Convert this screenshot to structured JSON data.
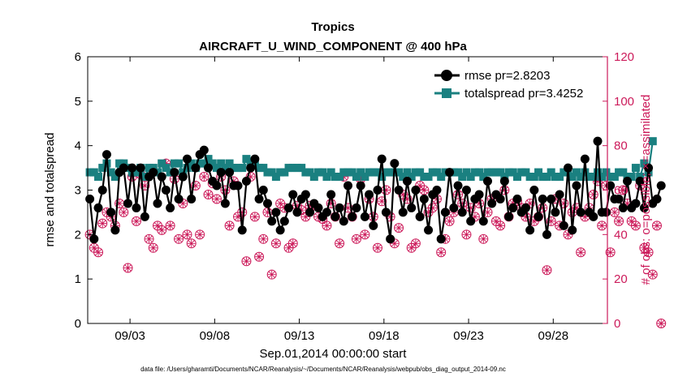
{
  "chart_data": {
    "type": "line",
    "title": "Tropics",
    "subtitle": "AIRCRAFT_U_WIND_COMPONENT @ 400 hPa",
    "xlabel": "Sep.01,2014 00:00:00 start",
    "ylabel": "rmse and totalspread",
    "ylabel_right": "# of obs: o=possible; ×=assimilated",
    "footnote": "data file: /Users/gharamti/Documents/NCAR/Reanalysis/~/Documents/NCAR/Reanalysis/webpub/obs_diag_output_2014-09.nc",
    "x_range_days": [
      0.5,
      31.2
    ],
    "ylim": [
      0,
      6
    ],
    "ylim_right": [
      0,
      120
    ],
    "y_ticks": [
      "0",
      "1",
      "2",
      "3",
      "4",
      "5",
      "6"
    ],
    "y_ticks_right": [
      "0",
      "20",
      "40",
      "60",
      "80",
      "100",
      "120"
    ],
    "x_ticks": [
      {
        "label": "09/03",
        "day": 3
      },
      {
        "label": "09/08",
        "day": 8
      },
      {
        "label": "09/13",
        "day": 13
      },
      {
        "label": "09/18",
        "day": 18
      },
      {
        "label": "09/23",
        "day": 23
      },
      {
        "label": "09/28",
        "day": 28
      }
    ],
    "legend": [
      {
        "name": "rmse pr=2.8203",
        "color": "#000000"
      },
      {
        "name": "totalspread pr=3.4252",
        "color": "#1a8080"
      }
    ],
    "series": [
      {
        "name": "rmse",
        "color": "#000000",
        "x_start_day": 0.625,
        "x_step_day": 0.25,
        "values": [
          2.8,
          1.9,
          2.6,
          3.0,
          3.8,
          2.5,
          2.1,
          3.4,
          3.5,
          2.7,
          3.5,
          2.6,
          3.5,
          2.4,
          3.3,
          3.4,
          2.7,
          3.3,
          3.0,
          2.6,
          3.4,
          2.8,
          3.3,
          3.7,
          2.8,
          3.5,
          3.8,
          3.9,
          3.5,
          3.2,
          3.1,
          3.4,
          2.7,
          3.4,
          3.1,
          3.1,
          2.1,
          3.2,
          3.5,
          3.7,
          2.8,
          3.0,
          2.7,
          2.3,
          2.5,
          2.1,
          2.3,
          2.6,
          2.9,
          2.5,
          2.8,
          2.9,
          2.5,
          2.7,
          2.6,
          2.4,
          2.5,
          2.9,
          2.4,
          2.6,
          2.3,
          3.1,
          2.4,
          2.6,
          3.1,
          2.4,
          2.9,
          2.2,
          3.0,
          3.7,
          2.5,
          1.9,
          3.6,
          3.0,
          2.5,
          3.2,
          2.6,
          3.0,
          2.4,
          2.8,
          2.1,
          2.9,
          3.0,
          1.9,
          2.5,
          3.4,
          2.6,
          3.1,
          2.5,
          3.0,
          2.3,
          2.8,
          2.9,
          2.3,
          3.2,
          2.7,
          2.9,
          2.8,
          3.2,
          2.4,
          2.6,
          2.8,
          2.5,
          2.6,
          2.1,
          3.0,
          2.4,
          2.8,
          2.0,
          2.8,
          2.5,
          2.9,
          2.2,
          3.5,
          2.1,
          3.1,
          2.5,
          3.7,
          2.5,
          2.4,
          4.1,
          2.5,
          2.5,
          3.1,
          2.8,
          2.8,
          2.6,
          3.2,
          2.6,
          2.7,
          3.2,
          2.6,
          3.5,
          2.7,
          2.8,
          3.1
        ]
      },
      {
        "name": "totalspread",
        "color": "#1a8080",
        "x_start_day": 0.625,
        "x_step_day": 0.25,
        "values": [
          3.4,
          3.4,
          3.3,
          3.5,
          3.6,
          3.4,
          3.3,
          3.6,
          3.6,
          3.5,
          3.4,
          3.4,
          3.5,
          3.3,
          3.5,
          3.5,
          3.4,
          3.6,
          3.5,
          3.4,
          3.6,
          3.6,
          3.4,
          3.5,
          3.6,
          3.5,
          3.6,
          3.6,
          3.7,
          3.6,
          3.5,
          3.6,
          3.5,
          3.6,
          3.5,
          3.5,
          3.5,
          3.7,
          3.6,
          3.6,
          3.5,
          3.5,
          3.4,
          3.4,
          3.3,
          3.4,
          3.4,
          3.5,
          3.5,
          3.5,
          3.5,
          3.4,
          3.4,
          3.3,
          3.4,
          3.4,
          3.3,
          3.4,
          3.3,
          3.3,
          3.4,
          3.4,
          3.4,
          3.3,
          3.4,
          3.3,
          3.4,
          3.4,
          3.4,
          3.3,
          3.4,
          3.4,
          3.4,
          3.4,
          3.3,
          3.4,
          3.3,
          3.4,
          3.4,
          3.3,
          3.3,
          3.4,
          3.4,
          3.3,
          3.4,
          3.4,
          3.4,
          3.4,
          3.3,
          3.4,
          3.3,
          3.4,
          3.4,
          3.3,
          3.4,
          3.4,
          3.4,
          3.4,
          3.3,
          3.4,
          3.4,
          3.3,
          3.4,
          3.4,
          3.3,
          3.3,
          3.4,
          3.3,
          3.3,
          3.4,
          3.3,
          3.3,
          3.4,
          3.4,
          3.3,
          3.4,
          3.3,
          3.4,
          3.3,
          3.3,
          3.4,
          3.3,
          3.4,
          3.3,
          3.3,
          3.4,
          3.4,
          3.3,
          3.3,
          3.5,
          3.3,
          3.6,
          3.4,
          4.1
        ]
      },
      {
        "name": "obs possible/assimilated",
        "axis": "right",
        "color": "#cc1a5a",
        "x_start_day": 0.625,
        "x_step_day": 0.25,
        "values": [
          40,
          34,
          32,
          45,
          50,
          48,
          44,
          54,
          50,
          25,
          66,
          46,
          67,
          62,
          38,
          34,
          44,
          42,
          72,
          44,
          65,
          38,
          54,
          40,
          36,
          62,
          40,
          66,
          58,
          63,
          56,
          66,
          60,
          44,
          64,
          48,
          50,
          28,
          66,
          48,
          30,
          38,
          50,
          22,
          36,
          54,
          52,
          34,
          36,
          53,
          51,
          48,
          53,
          53,
          48,
          47,
          44,
          54,
          48,
          36,
          66,
          52,
          48,
          38,
          65,
          40,
          56,
          48,
          34,
          55,
          60,
          48,
          36,
          43,
          58,
          56,
          34,
          36,
          62,
          60,
          50,
          52,
          56,
          32,
          38,
          46,
          50,
          58,
          54,
          40,
          52,
          48,
          54,
          38,
          50,
          56,
          46,
          44,
          60,
          48,
          54,
          55,
          52,
          48,
          54,
          46,
          48,
          52,
          24,
          46,
          56,
          44,
          54,
          40,
          50,
          52,
          32,
          48,
          52,
          58,
          64,
          44,
          62,
          32,
          50,
          46,
          60,
          54,
          46,
          44,
          62,
          34,
          32,
          22,
          44,
          0
        ]
      }
    ]
  }
}
